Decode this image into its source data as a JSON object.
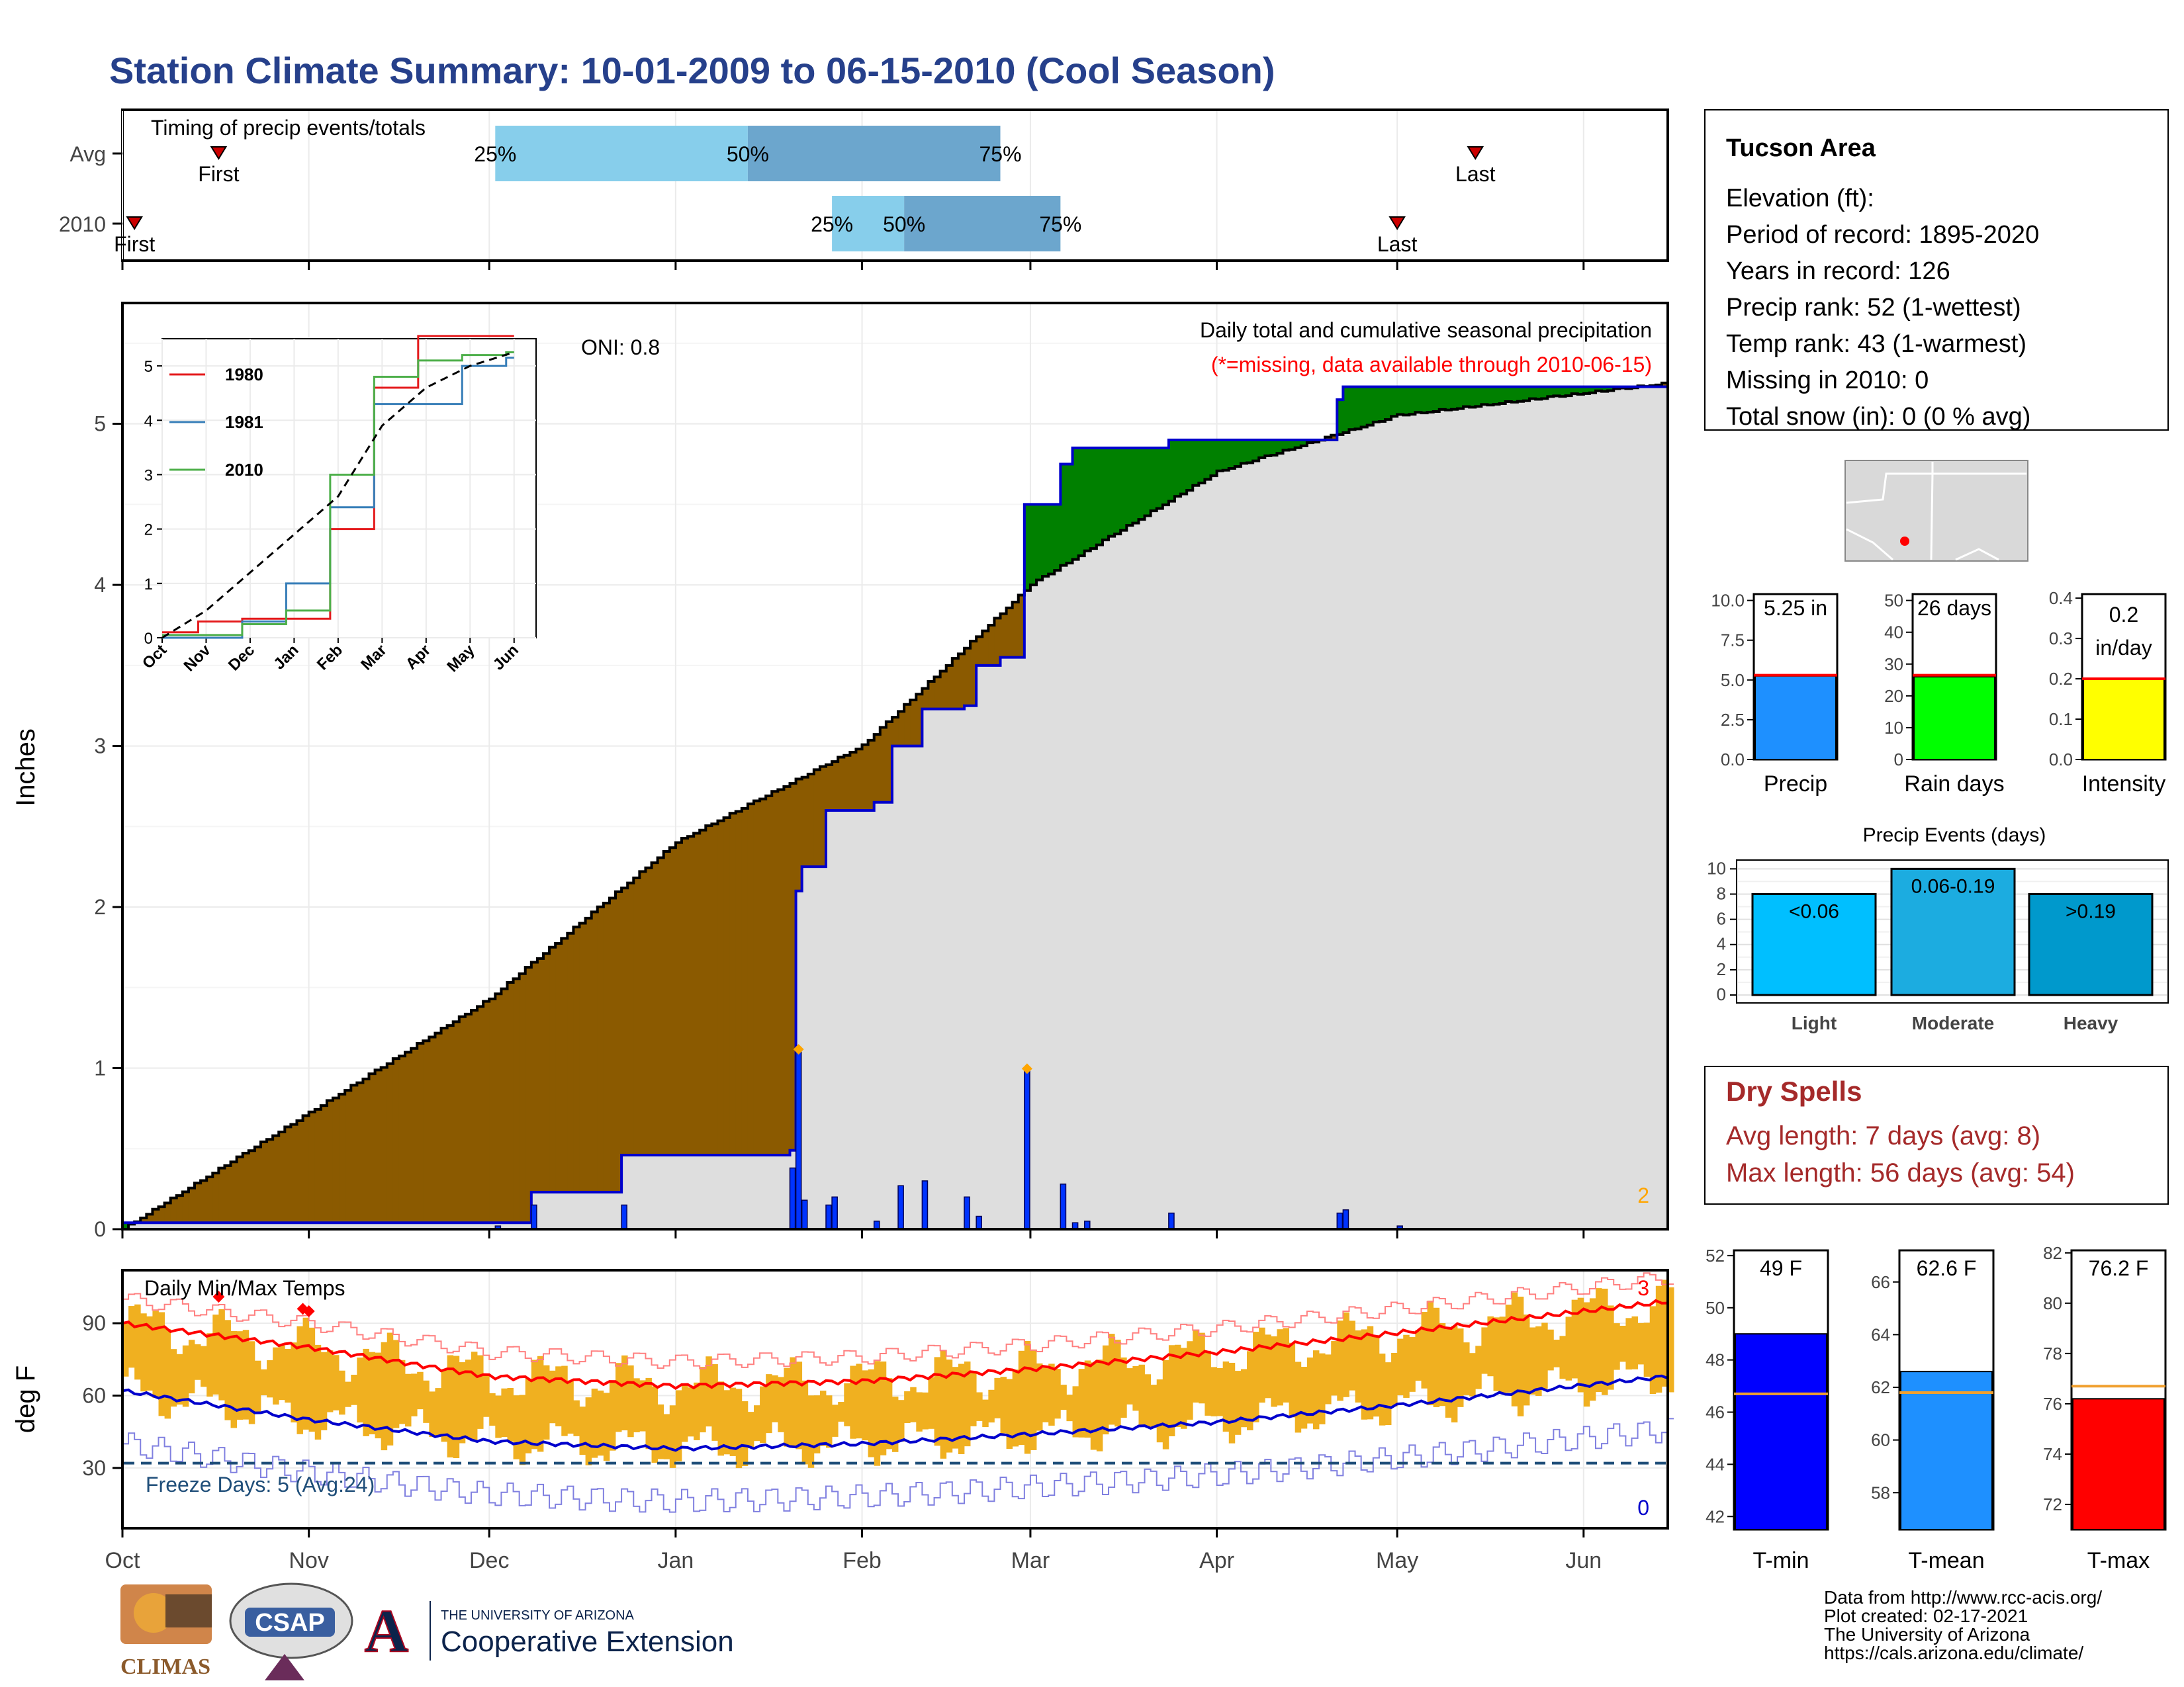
{
  "title": "Station Climate Summary: 10-01-2009 to 06-15-2010 (Cool Season)",
  "colors": {
    "title": "#26408B",
    "precip_deficit": "#8B5A00",
    "precip_surplus": "#008000",
    "season_line": "#0000CC",
    "precip_bar": "#0033FF",
    "temp_bar": "#F0B020",
    "avg_max": "#FF0000",
    "avg_min": "#0000CC",
    "record_max": "#FF8080",
    "record_min": "#8080E0",
    "freeze_line": "#1F4E79",
    "dry_spells_text": "#A52A2A",
    "missing_note": "#FF0000",
    "timing_light": "#87CEEB",
    "timing_dark": "#6CA6CD"
  },
  "months": [
    "Oct",
    "Nov",
    "Dec",
    "Jan",
    "Feb",
    "Mar",
    "Apr",
    "May",
    "Jun"
  ],
  "timing": {
    "heading": "Timing of precip events/totals",
    "rows": [
      {
        "label": "Avg",
        "first_label": "First",
        "last_label": "Last",
        "first_day": 16,
        "last_day": 225,
        "p25": 62,
        "p50": 104,
        "p75": 146,
        "p25_label": "25%",
        "p50_label": "50%",
        "p75_label": "75%"
      },
      {
        "label": "2010",
        "first_label": "First",
        "last_label": "Last",
        "first_day": 2,
        "last_day": 212,
        "p25": 118,
        "p50": 130,
        "p75": 156,
        "p25_label": "25%",
        "p50_label": "50%",
        "p75_label": "75%"
      }
    ]
  },
  "precip_panel": {
    "ylabel": "Inches",
    "heading": "Daily total and cumulative seasonal precipitation",
    "missing_note": "(*=missing, data available through 2010-06-15)",
    "oni": "ONI: 0.8",
    "corner_note": "2",
    "yticks": [
      "0",
      "1",
      "2",
      "3",
      "4",
      "5"
    ]
  },
  "inset": {
    "yticks": [
      "0",
      "1",
      "2",
      "3",
      "4",
      "5"
    ],
    "xticks": [
      "Oct",
      "Nov",
      "Dec",
      "Jan",
      "Feb",
      "Mar",
      "Apr",
      "May",
      "Jun"
    ],
    "legend": [
      {
        "name": "1980",
        "color": "#E41A1C"
      },
      {
        "name": "1981",
        "color": "#377EB8"
      },
      {
        "name": "2010",
        "color": "#4DAF4A"
      }
    ]
  },
  "temp_panel": {
    "ylabel": "deg F",
    "heading": "Daily Min/Max Temps",
    "freeze_label": "Freeze Days: 5 (Avg:24)",
    "record_high_count": "3",
    "record_low_count": "0",
    "yticks": [
      "30",
      "60",
      "90"
    ]
  },
  "station": {
    "name": "Tucson Area",
    "lines": [
      "Elevation (ft):",
      "Period of record: 1895-2020",
      "Years in record: 126",
      "Precip rank: 52 (1-wettest)",
      "Temp rank: 43 (1-warmest)",
      "Missing in 2010: 0",
      "Total snow (in): 0 (0 % avg)"
    ]
  },
  "dry_spells": {
    "title": "Dry Spells",
    "avg": "Avg length: 7 days (avg: 8)",
    "max": "Max length: 56 days (avg: 54)"
  },
  "mini_bars": [
    {
      "label": "Precip",
      "value_label": "5.25 in",
      "value": 5.25,
      "avg": 5.3,
      "ymax": 10.4,
      "ticks": [
        "0.0",
        "2.5",
        "5.0",
        "7.5",
        "10.0"
      ],
      "tick_vals": [
        0,
        2.5,
        5,
        7.5,
        10
      ],
      "color": "#1E90FF"
    },
    {
      "label": "Rain days",
      "value_label": "26 days",
      "value": 26,
      "avg": 26.5,
      "ymax": 52,
      "ticks": [
        "0",
        "10",
        "20",
        "30",
        "40",
        "50"
      ],
      "tick_vals": [
        0,
        10,
        20,
        30,
        40,
        50
      ],
      "color": "#00FF00"
    },
    {
      "label": "Intensity",
      "value_label": "0.2 in/day",
      "value": 0.2,
      "avg": 0.2,
      "ymax": 0.41,
      "ticks": [
        "0.0",
        "0.1",
        "0.2",
        "0.3",
        "0.4"
      ],
      "tick_vals": [
        0,
        0.1,
        0.2,
        0.3,
        0.4
      ],
      "color": "#FFFF00"
    }
  ],
  "events": {
    "title": "Precip Events (days)",
    "yticks": [
      "0",
      "2",
      "4",
      "6",
      "8",
      "10"
    ],
    "bars": [
      {
        "category": "Light",
        "range": "<0.06",
        "value": 8,
        "color": "#00BFFF"
      },
      {
        "category": "Moderate",
        "range": "0.06-0.19",
        "value": 10,
        "color": "#1CACE0"
      },
      {
        "category": "Heavy",
        "range": ">0.19",
        "value": 8,
        "color": "#0099CC"
      }
    ]
  },
  "temp_bars": [
    {
      "label": "T-min",
      "value_label": "49 F",
      "value": 49,
      "avg": 46.7,
      "ymin": 41.5,
      "ymax": 52.2,
      "ticks": [
        "42",
        "44",
        "46",
        "48",
        "50",
        "52"
      ],
      "tick_vals": [
        42,
        44,
        46,
        48,
        50,
        52
      ],
      "color": "#0000FF"
    },
    {
      "label": "T-mean",
      "value_label": "62.6 F",
      "value": 62.6,
      "avg": 61.8,
      "ymin": 56.6,
      "ymax": 67.2,
      "ticks": [
        "58",
        "60",
        "62",
        "64",
        "66"
      ],
      "tick_vals": [
        58,
        60,
        62,
        64,
        66
      ],
      "color": "#1E90FF"
    },
    {
      "label": "T-max",
      "value_label": "76.2 F",
      "value": 76.2,
      "avg": 76.7,
      "ymin": 71.0,
      "ymax": 82.1,
      "ticks": [
        "72",
        "74",
        "76",
        "78",
        "80",
        "82"
      ],
      "tick_vals": [
        72,
        74,
        76,
        78,
        80,
        82
      ],
      "color": "#FF0000"
    }
  ],
  "footer": [
    "Data from http://www.rcc-acis.org/",
    "Plot created: 02-17-2021",
    "The University of Arizona",
    "https://cals.arizona.edu/climate/"
  ],
  "logos": {
    "climas": "CLIMAS",
    "csap": "CSAP",
    "ua_line1": "THE UNIVERSITY OF ARIZONA",
    "ua_line2": "Cooperative Extension"
  },
  "chart_data": [
    {
      "type": "area",
      "title": "Daily total and cumulative seasonal precipitation",
      "ylabel": "Inches",
      "ylim": [
        0,
        5.75
      ],
      "xlim": [
        "2009-10-01",
        "2010-06-15"
      ],
      "avg_cumulative": {
        "x": [
          "2009-10-01",
          "2009-11-01",
          "2009-12-01",
          "2010-01-01",
          "2010-02-01",
          "2010-03-01",
          "2010-04-01",
          "2010-05-01",
          "2010-06-15"
        ],
        "y": [
          0,
          0.72,
          1.43,
          2.4,
          3.0,
          4.0,
          4.7,
          5.05,
          5.25
        ]
      },
      "season_cumulative": {
        "x": [
          "2009-10-01",
          "2009-11-30",
          "2009-12-08",
          "2009-12-23",
          "2010-01-20",
          "2010-01-21",
          "2010-01-22",
          "2010-01-26",
          "2010-02-03",
          "2010-02-06",
          "2010-02-11",
          "2010-02-18",
          "2010-02-20",
          "2010-02-24",
          "2010-02-28",
          "2010-03-06",
          "2010-03-08",
          "2010-03-24",
          "2010-04-21",
          "2010-04-22",
          "2010-06-15"
        ],
        "y": [
          0.04,
          0.04,
          0.23,
          0.46,
          0.49,
          2.1,
          2.25,
          2.6,
          2.65,
          3.0,
          3.23,
          3.25,
          3.5,
          3.55,
          4.5,
          4.75,
          4.85,
          4.9,
          5.15,
          5.23,
          5.25
        ]
      },
      "daily": {
        "x": [
          "2009-12-02",
          "2009-12-08",
          "2009-12-23",
          "2010-01-20",
          "2010-01-21",
          "2010-01-22",
          "2010-01-26",
          "2010-01-27",
          "2010-02-03",
          "2010-02-07",
          "2010-02-11",
          "2010-02-18",
          "2010-02-20",
          "2010-02-28",
          "2010-03-06",
          "2010-03-08",
          "2010-03-10",
          "2010-03-24",
          "2010-04-21",
          "2010-04-22",
          "2010-05-01"
        ],
        "y": [
          0.02,
          0.15,
          0.15,
          0.38,
          1.1,
          0.18,
          0.15,
          0.2,
          0.05,
          0.27,
          0.3,
          0.2,
          0.08,
          0.98,
          0.28,
          0.04,
          0.05,
          0.1,
          0.1,
          0.12,
          0.02
        ]
      }
    },
    {
      "type": "area",
      "title": "",
      "ylim": [
        0,
        5.5
      ],
      "x": [
        "Oct",
        "Nov",
        "Dec",
        "Jan",
        "Feb",
        "Mar",
        "Apr",
        "May",
        "Jun"
      ],
      "series": [
        {
          "name": "1980",
          "values": [
            0.1,
            0.3,
            0.35,
            0.35,
            2.0,
            4.6,
            5.55,
            5.55,
            5.55
          ]
        },
        {
          "name": "1981",
          "values": [
            0.0,
            0.0,
            0.3,
            1.0,
            2.4,
            4.3,
            4.3,
            5.0,
            5.15
          ]
        },
        {
          "name": "2010",
          "values": [
            0.05,
            0.05,
            0.25,
            0.5,
            3.0,
            4.8,
            5.1,
            5.2,
            5.25
          ]
        },
        {
          "name": "",
          "values": [
            0,
            0.5,
            1.2,
            1.9,
            2.6,
            3.9,
            4.6,
            5.0,
            5.25
          ]
        }
      ]
    },
    {
      "type": "bar",
      "title": "Daily Min/Max Temps",
      "ylabel": "deg F",
      "ylim": [
        5,
        112
      ],
      "freeze_line": 32,
      "avg_max": {
        "x": [
          "2009-10-01",
          "2009-11-01",
          "2009-12-01",
          "2010-01-01",
          "2010-02-01",
          "2010-03-01",
          "2010-04-01",
          "2010-05-01",
          "2010-06-15"
        ],
        "y": [
          90,
          80,
          68,
          64,
          66,
          71,
          78,
          86,
          99
        ]
      },
      "avg_min": {
        "x": [
          "2009-10-01",
          "2009-11-01",
          "2009-12-01",
          "2010-01-01",
          "2010-02-01",
          "2010-03-01",
          "2010-04-01",
          "2010-05-01",
          "2010-06-15"
        ],
        "y": [
          62,
          50,
          41,
          38,
          40,
          44,
          49,
          56,
          68
        ]
      }
    }
  ]
}
